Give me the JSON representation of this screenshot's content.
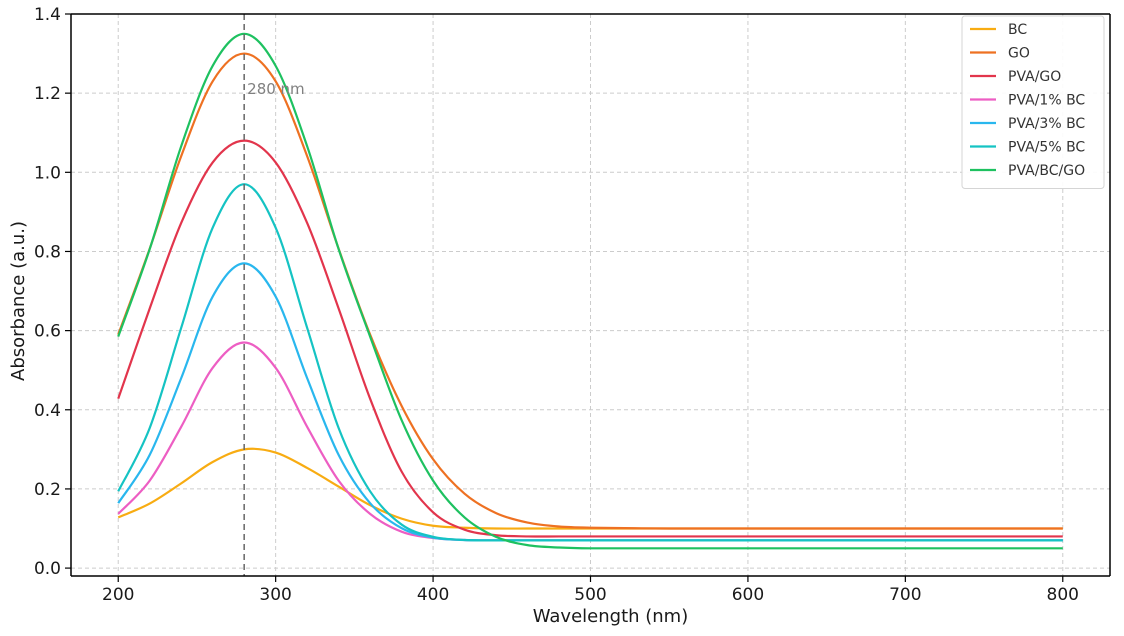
{
  "chart_data": {
    "type": "line",
    "title": "",
    "xlabel": "Wavelength (nm)",
    "ylabel": "Absorbance (a.u.)",
    "xlim": [
      170,
      830
    ],
    "ylim": [
      -0.02,
      1.4
    ],
    "xticks": [
      200,
      300,
      400,
      500,
      600,
      700,
      800
    ],
    "xtick_labels": [
      "200",
      "300",
      "400",
      "500",
      "600",
      "700",
      "800"
    ],
    "yticks": [
      0.0,
      0.2,
      0.4,
      0.6,
      0.8,
      1.0,
      1.2,
      1.4
    ],
    "ytick_labels": [
      "0.0",
      "0.2",
      "0.4",
      "0.6",
      "0.8",
      "1.0",
      "1.2",
      "1.4"
    ],
    "grid": true,
    "legend_position": "top-right",
    "annotation": {
      "x": 280,
      "text": "280 nm",
      "line_style": "dashed"
    },
    "x": [
      200,
      220,
      240,
      260,
      280,
      300,
      320,
      340,
      360,
      380,
      400,
      420,
      440,
      460,
      480,
      500,
      550,
      600,
      650,
      700,
      750,
      800
    ],
    "series": [
      {
        "name": "BC",
        "color": "#f8ac12",
        "values": [
          0.128,
          0.163,
          0.214,
          0.268,
          0.3,
          0.292,
          0.253,
          0.206,
          0.159,
          0.125,
          0.107,
          0.102,
          0.1,
          0.1,
          0.1,
          0.1,
          0.1,
          0.1,
          0.1,
          0.1,
          0.1,
          0.1
        ]
      },
      {
        "name": "GO",
        "color": "#ee7122",
        "values": [
          0.59,
          0.807,
          1.041,
          1.23,
          1.3,
          1.23,
          1.041,
          0.807,
          0.59,
          0.41,
          0.275,
          0.188,
          0.139,
          0.115,
          0.105,
          0.102,
          0.1,
          0.1,
          0.1,
          0.1,
          0.1,
          0.1
        ]
      },
      {
        "name": "PVA/GO",
        "color": "#e2354c",
        "values": [
          0.428,
          0.656,
          0.872,
          1.025,
          1.08,
          1.025,
          0.872,
          0.656,
          0.428,
          0.244,
          0.141,
          0.097,
          0.083,
          0.08,
          0.08,
          0.08,
          0.08,
          0.08,
          0.08,
          0.08,
          0.08,
          0.08
        ]
      },
      {
        "name": "PVA/1% BC",
        "color": "#ed5ec3",
        "values": [
          0.137,
          0.221,
          0.357,
          0.506,
          0.57,
          0.506,
          0.357,
          0.221,
          0.137,
          0.092,
          0.076,
          0.071,
          0.07,
          0.07,
          0.07,
          0.07,
          0.07,
          0.07,
          0.07,
          0.07,
          0.07,
          0.07
        ]
      },
      {
        "name": "PVA/3% BC",
        "color": "#29b7ee",
        "values": [
          0.164,
          0.286,
          0.48,
          0.686,
          0.77,
          0.686,
          0.48,
          0.286,
          0.164,
          0.101,
          0.077,
          0.071,
          0.07,
          0.07,
          0.07,
          0.07,
          0.07,
          0.07,
          0.07,
          0.07,
          0.07,
          0.07
        ]
      },
      {
        "name": "PVA/5% BC",
        "color": "#15c3c3",
        "values": [
          0.194,
          0.354,
          0.607,
          0.86,
          0.97,
          0.86,
          0.607,
          0.354,
          0.194,
          0.11,
          0.079,
          0.071,
          0.07,
          0.07,
          0.07,
          0.07,
          0.07,
          0.07,
          0.07,
          0.07,
          0.07,
          0.07
        ]
      },
      {
        "name": "PVA/BC/GO",
        "color": "#1ec160",
        "values": [
          0.585,
          0.806,
          1.066,
          1.269,
          1.35,
          1.269,
          1.066,
          0.806,
          0.585,
          0.374,
          0.221,
          0.128,
          0.079,
          0.058,
          0.052,
          0.05,
          0.05,
          0.05,
          0.05,
          0.05,
          0.05,
          0.05
        ]
      }
    ]
  }
}
